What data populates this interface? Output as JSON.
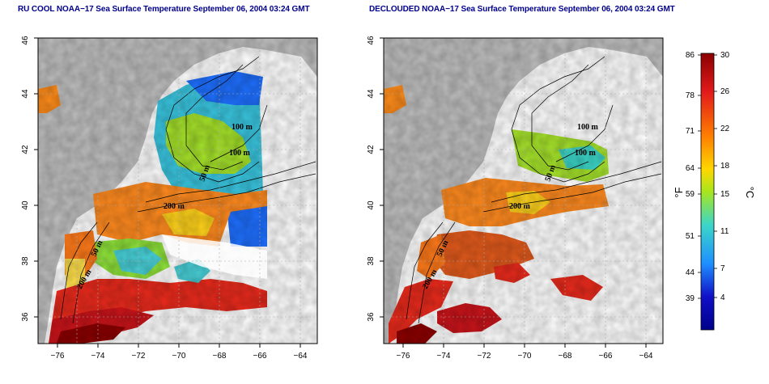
{
  "panels": [
    {
      "title": "RU COOL NOAA−17 Sea Surface Temperature September 06, 2004 03:24 GMT",
      "contour_labels": [
        "100 m",
        "100 m",
        "50 m",
        "200 m",
        "50 m",
        "200 m"
      ]
    },
    {
      "title": "DECLOUDED NOAA−17 Sea Surface Temperature September 06, 2004 03:24 GMT",
      "contour_labels": [
        "100 m",
        "100 m",
        "50 m",
        "200 m",
        "50 m",
        "200 m"
      ]
    }
  ],
  "axes": {
    "x_ticks": [
      "−76",
      "−74",
      "−72",
      "−70",
      "−68",
      "−66",
      "−64"
    ],
    "y_ticks": [
      "36",
      "38",
      "40",
      "42",
      "44",
      "46"
    ]
  },
  "colorbar": {
    "fahrenheit_labels": [
      "86",
      "78",
      "71",
      "64",
      "59",
      "51",
      "44",
      "39"
    ],
    "celsius_labels": [
      "30",
      "26",
      "22",
      "18",
      "15",
      "11",
      "7",
      "4"
    ],
    "left_unit": "°F",
    "right_unit": "°C",
    "colors": [
      "#8b0000",
      "#e21a1c",
      "#ff7f00",
      "#ffd700",
      "#a8e61d",
      "#3cd6c8",
      "#1e90ff",
      "#1010c8",
      "#00008b"
    ]
  },
  "colors": {
    "land": "#bebebe",
    "frame": "#000000",
    "title": "#00008b"
  }
}
